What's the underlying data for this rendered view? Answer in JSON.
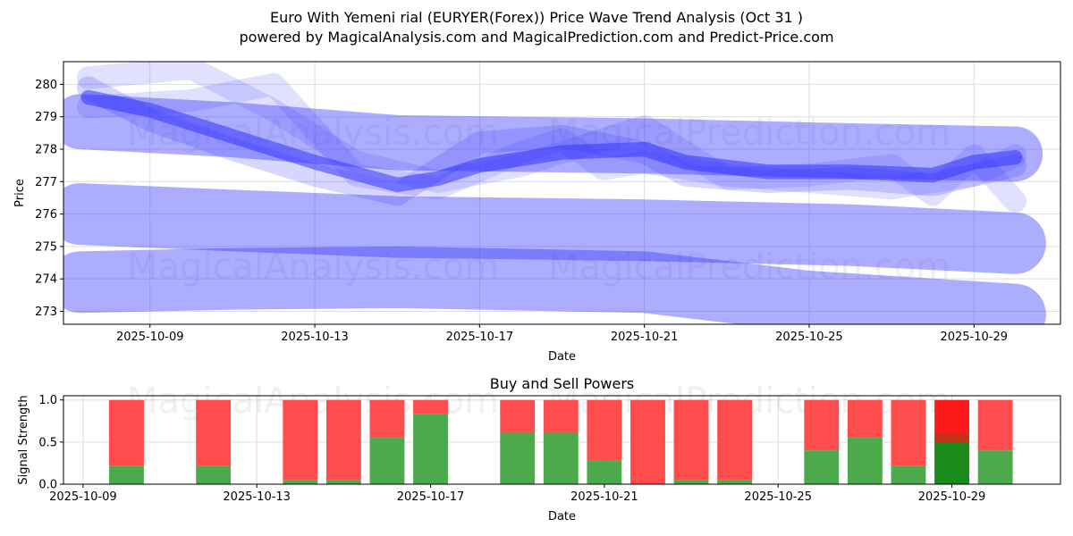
{
  "title": "Euro With Yemeni rial (EURYER(Forex)) Price Wave Trend Analysis (Oct 31 )",
  "subtitle": "powered by MagicalAnalysis.com and MagicalPrediction.com and Predict-Price.com",
  "watermarks": [
    "MagicalAnalysis.com",
    "MagicalPrediction.com"
  ],
  "chart_data": [
    {
      "type": "line",
      "title": "",
      "xlabel": "Date",
      "ylabel": "Price",
      "xlim_day_of_oct": [
        6.9,
        31.1
      ],
      "ylim": [
        272.6,
        280.7
      ],
      "xticks": [
        {
          "day": 9,
          "label": "2025-10-09"
        },
        {
          "day": 13,
          "label": "2025-10-13"
        },
        {
          "day": 17,
          "label": "2025-10-17"
        },
        {
          "day": 21,
          "label": "2025-10-21"
        },
        {
          "day": 25,
          "label": "2025-10-25"
        },
        {
          "day": 29,
          "label": "2025-10-29"
        }
      ],
      "yticks": [
        273,
        274,
        275,
        276,
        277,
        278,
        279,
        280
      ],
      "color": "#3333ff",
      "series": [
        {
          "name": "wave-upper-band",
          "width": 1.7,
          "opacity": 0.4,
          "x": [
            7.3,
            11,
            15,
            21,
            26,
            30
          ],
          "y": [
            278.85,
            278.6,
            278.2,
            278.1,
            277.95,
            277.85
          ]
        },
        {
          "name": "wave-mid-band",
          "width": 1.9,
          "opacity": 0.4,
          "x": [
            7.3,
            11,
            15,
            21,
            26,
            30
          ],
          "y": [
            276.0,
            275.8,
            275.6,
            275.5,
            275.35,
            275.1
          ]
        },
        {
          "name": "wave-lower-band",
          "width": 1.9,
          "opacity": 0.4,
          "x": [
            7.3,
            11,
            15,
            21,
            25,
            30
          ],
          "y": [
            273.9,
            274.0,
            274.05,
            273.9,
            273.3,
            272.9
          ]
        },
        {
          "name": "wave-light-1",
          "width": 0.7,
          "opacity": 0.15,
          "x": [
            7.5,
            10,
            12,
            14,
            16,
            18,
            20,
            21,
            23,
            25,
            27,
            28,
            29,
            30
          ],
          "y": [
            280.2,
            280.5,
            279.2,
            277.6,
            277.0,
            277.5,
            278.3,
            278.7,
            277.1,
            277.2,
            277.5,
            276.6,
            277.8,
            276.4
          ]
        },
        {
          "name": "wave-light-2",
          "width": 0.7,
          "opacity": 0.15,
          "x": [
            7.5,
            10,
            12,
            14,
            16,
            18,
            19,
            20,
            21,
            23,
            25,
            27,
            29,
            30
          ],
          "y": [
            279.3,
            279.5,
            280.0,
            277.2,
            276.8,
            277.9,
            278.3,
            277.4,
            277.6,
            277.2,
            277.0,
            276.8,
            277.2,
            277.8
          ]
        },
        {
          "name": "wave-light-3",
          "width": 0.7,
          "opacity": 0.2,
          "x": [
            7.5,
            9,
            11,
            13,
            15,
            17,
            19,
            21,
            22,
            24,
            26,
            28,
            30
          ],
          "y": [
            279.9,
            278.9,
            278.0,
            277.2,
            276.6,
            278.2,
            278.4,
            277.9,
            277.2,
            277.0,
            277.1,
            276.9,
            277.5
          ]
        },
        {
          "name": "wave-main",
          "width": 0.45,
          "opacity": 0.55,
          "x": [
            7.5,
            9,
            11,
            13,
            15,
            16,
            17,
            19,
            21,
            22,
            24,
            26,
            28,
            29,
            30
          ],
          "y": [
            279.6,
            279.2,
            278.4,
            277.6,
            276.9,
            277.1,
            277.5,
            277.9,
            278.0,
            277.6,
            277.3,
            277.3,
            277.2,
            277.6,
            277.75
          ]
        }
      ]
    },
    {
      "type": "bar",
      "title": "Buy and Sell Powers",
      "xlabel": "Date",
      "ylabel": "Signal Strength",
      "xlim_day_of_oct": [
        8.55,
        31.5
      ],
      "ylim": [
        0,
        1.05
      ],
      "yticks": [
        {
          "v": 0,
          "label": "0.0"
        },
        {
          "v": 0.5,
          "label": "0.5"
        },
        {
          "v": 1,
          "label": "1.0"
        }
      ],
      "xticks": [
        {
          "day": 9,
          "label": "2025-10-09"
        },
        {
          "day": 13,
          "label": "2025-10-13"
        },
        {
          "day": 17,
          "label": "2025-10-17"
        },
        {
          "day": 21,
          "label": "2025-10-21"
        },
        {
          "day": 25,
          "label": "2025-10-25"
        },
        {
          "day": 29,
          "label": "2025-10-29"
        }
      ],
      "buy_color": "#4caa4c",
      "sell_color": "#ff4c4c",
      "days": [
        10,
        12,
        14,
        15,
        16,
        17,
        19,
        20,
        21,
        22,
        23,
        24,
        26,
        27,
        28,
        29,
        30
      ],
      "buy": [
        0.22,
        0.22,
        0.05,
        0.05,
        0.55,
        0.83,
        0.61,
        0.61,
        0.28,
        0,
        0.05,
        0.05,
        0.4,
        0.55,
        0.22,
        0.5,
        0.4
      ],
      "highlight_day": 29
    }
  ]
}
